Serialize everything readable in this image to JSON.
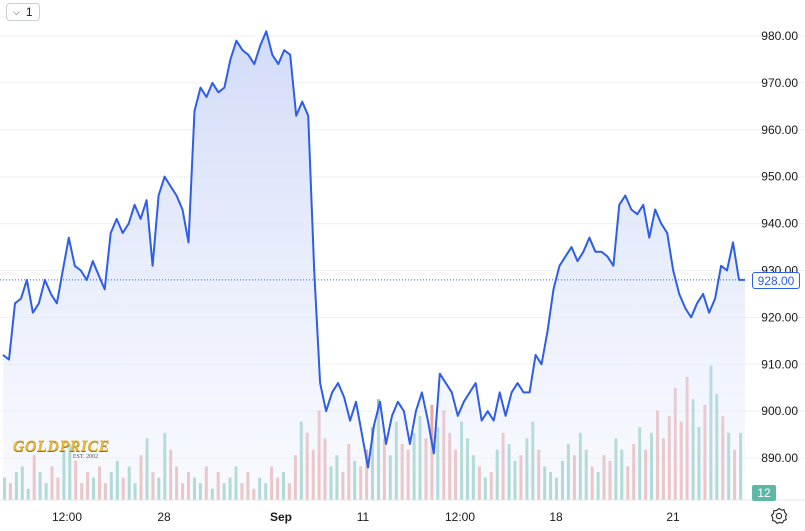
{
  "toolbar": {
    "interval_label": "1"
  },
  "logo": {
    "brand": "GOLDPRICE",
    "est": "EST. 2002"
  },
  "price_tag": "928.00",
  "volume_tag": "12",
  "colors": {
    "line": "#2e5de6",
    "fill_top": "#dde4fb",
    "vol_up": "#5fb8a6",
    "vol_down": "#e08b84"
  },
  "icons": {
    "interval_dropdown": "chevron-down-icon",
    "settings": "gear-icon"
  },
  "chart_data": {
    "type": "area",
    "title": "",
    "xlabel": "",
    "ylabel": "",
    "ylim": [
      884,
      985
    ],
    "y_ticks": [
      980,
      970,
      960,
      950,
      940,
      930,
      920,
      910,
      900,
      890
    ],
    "y_tick_labels": [
      "980.00",
      "970.00",
      "960.00",
      "950.00",
      "940.00",
      "930.00",
      "920.00",
      "910.00",
      "900.00",
      "890.00"
    ],
    "x_tick_labels": [
      "12:00",
      "28",
      "Sep",
      "11",
      "12:00",
      "18",
      "21"
    ],
    "last_value": 928.0,
    "grid": true,
    "series": [
      {
        "values": [
          912,
          911,
          923,
          924,
          928,
          921,
          923,
          928,
          925,
          923,
          930,
          937,
          931,
          930,
          928,
          932,
          929,
          926,
          938,
          941,
          938,
          940,
          944,
          941,
          945,
          931,
          946,
          950,
          948,
          946,
          943,
          936,
          964,
          969,
          967,
          970,
          968,
          969,
          975,
          979,
          977,
          976,
          974,
          978,
          981,
          976,
          974,
          977,
          976,
          963,
          966,
          963,
          930,
          906,
          900,
          904,
          906,
          903,
          898,
          902,
          895,
          888,
          897,
          902,
          893,
          899,
          902,
          900,
          893,
          900,
          904,
          898,
          891,
          908,
          906,
          904,
          899,
          902,
          904,
          906,
          898,
          900,
          898,
          904,
          899,
          904,
          906,
          904,
          904,
          912,
          910,
          917,
          926,
          931,
          933,
          935,
          932,
          934,
          937,
          934,
          934,
          933,
          931,
          944,
          946,
          943,
          942,
          944,
          937,
          943,
          940,
          938,
          930,
          925,
          922,
          920,
          923,
          925,
          921,
          924,
          931,
          930,
          936,
          928,
          928
        ]
      }
    ],
    "volume": {
      "values": [
        4,
        3,
        5,
        6,
        2,
        8,
        5,
        3,
        6,
        4,
        9,
        10,
        7,
        3,
        5,
        4,
        6,
        3,
        5,
        7,
        4,
        6,
        3,
        8,
        11,
        5,
        4,
        12,
        9,
        6,
        3,
        5,
        4,
        3,
        6,
        2,
        5,
        3,
        4,
        6,
        3,
        5,
        2,
        4,
        3,
        6,
        4,
        5,
        3,
        8,
        14,
        12,
        9,
        16,
        11,
        6,
        8,
        5,
        10,
        7,
        6,
        9,
        13,
        18,
        11,
        8,
        14,
        10,
        9,
        12,
        15,
        11,
        17,
        13,
        16,
        12,
        9,
        14,
        11,
        8,
        6,
        4,
        5,
        9,
        12,
        10,
        7,
        8,
        11,
        14,
        9,
        6,
        5,
        4,
        7,
        10,
        8,
        12,
        9,
        6,
        5,
        8,
        7,
        11,
        9,
        6,
        10,
        13,
        9,
        12,
        16,
        11,
        15,
        20,
        14,
        22,
        18,
        13,
        17,
        24,
        19,
        15,
        12,
        9,
        12
      ],
      "last_value": 12
    }
  }
}
